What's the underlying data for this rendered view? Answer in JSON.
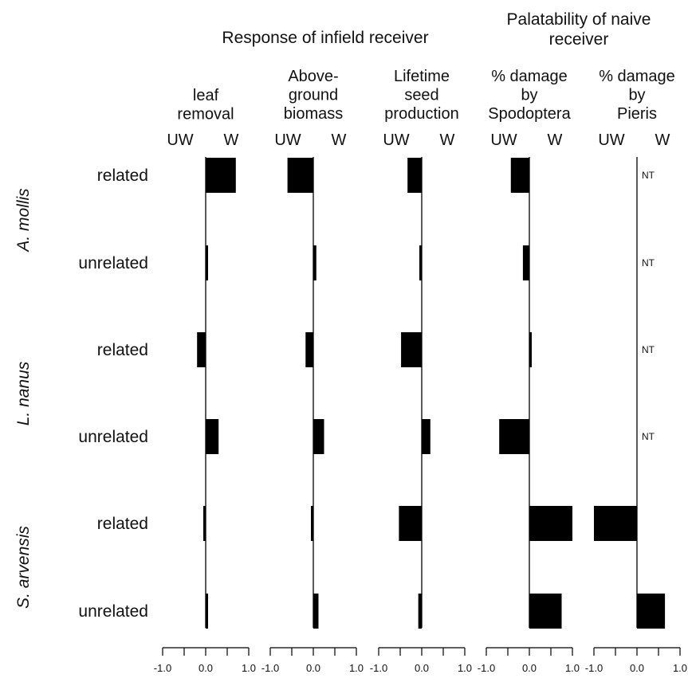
{
  "chart_data": {
    "type": "bar",
    "orientation": "horizontal",
    "group_titles": {
      "infield": "Response of infield receiver",
      "naive_line1": "Palatability of naive",
      "naive_line2": "receiver"
    },
    "categories": [
      "related",
      "unrelated",
      "related",
      "unrelated",
      "related",
      "unrelated"
    ],
    "species": [
      "A. mollis",
      "L. nanus",
      "S. arvensis"
    ],
    "tick_labels": [
      "-1.0",
      "0.0",
      "1.0"
    ],
    "xlim": [
      -1,
      1
    ],
    "nt_label": "NT",
    "panels": [
      {
        "title_lines": [
          "leaf",
          "removal"
        ],
        "uw_label": "UW",
        "w_label": "W",
        "values": [
          0.7,
          0.05,
          -0.2,
          0.3,
          -0.05,
          0.03
        ]
      },
      {
        "title_lines": [
          "Above-",
          "ground",
          "biomass"
        ],
        "uw_label": "UW",
        "w_label": "W",
        "values": [
          -0.6,
          0.07,
          -0.18,
          0.25,
          -0.02,
          0.12
        ]
      },
      {
        "title_lines": [
          "Lifetime",
          "seed",
          "production"
        ],
        "uw_label": "UW",
        "w_label": "W",
        "values": [
          -0.33,
          -0.05,
          -0.48,
          0.2,
          -0.53,
          -0.08
        ]
      },
      {
        "title_lines": [
          "% damage",
          "by",
          "Spodoptera"
        ],
        "uw_label": "UW",
        "w_label": "W",
        "values": [
          -0.43,
          -0.15,
          0.03,
          -0.7,
          1.0,
          0.75
        ]
      },
      {
        "title_lines": [
          "% damage",
          "by",
          "Pieris"
        ],
        "uw_label": "UW",
        "w_label": "W",
        "values": [
          null,
          null,
          null,
          null,
          -1.0,
          0.65
        ]
      }
    ]
  }
}
